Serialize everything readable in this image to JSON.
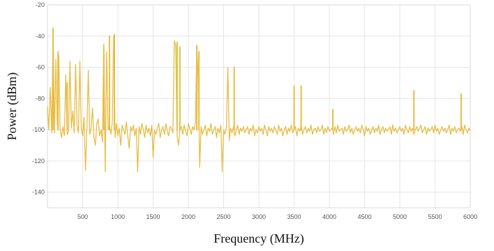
{
  "chart_data": {
    "type": "line",
    "title": "",
    "xlabel": "Frequency (MHz)",
    "ylabel": "Power (dBm)",
    "xlim": [
      0,
      6000
    ],
    "ylim": [
      -150,
      -20
    ],
    "x_ticks": [
      500,
      1000,
      1500,
      2000,
      2500,
      3000,
      3500,
      4000,
      4500,
      5000,
      5500,
      6000
    ],
    "x_tick_labels": [
      "500",
      "1000",
      "1500",
      "2000",
      "2500",
      "3000",
      "3500",
      "4000",
      "4500",
      "5000",
      "5500",
      "6000"
    ],
    "y_ticks": [
      -20,
      -40,
      -60,
      -80,
      -100,
      -120,
      -140
    ],
    "y_tick_labels": [
      "-20",
      "-40",
      "-60",
      "-80",
      "-100",
      "-120",
      "-140"
    ],
    "grid": true,
    "legend": false,
    "series_color": "#e8bd45",
    "series": [
      {
        "step_mhz": 20,
        "values": [
          -85,
          -100,
          -73,
          -102,
          -38,
          -102,
          -55,
          -97,
          -52,
          -100,
          -105,
          -98,
          -104,
          -65,
          -103,
          -101,
          -56,
          -99,
          -88,
          -102,
          -58,
          -97,
          -102,
          -56,
          -99,
          -104,
          -92,
          -126,
          -98,
          -62,
          -103,
          -99,
          -86,
          -105,
          -110,
          -96,
          -93,
          -104,
          -100,
          -108,
          -45,
          -127,
          -50,
          -100,
          -97,
          -103,
          -96,
          -40,
          -105,
          -96,
          -104,
          -99,
          -110,
          -97,
          -100,
          -103,
          -95,
          -104,
          -112,
          -98,
          -101,
          -97,
          -104,
          -99,
          -127,
          -98,
          -103,
          -96,
          -100,
          -105,
          -97,
          -102,
          -99,
          -104,
          -97,
          -118,
          -100,
          -103,
          -99,
          -96,
          -105,
          -100,
          -98,
          -103,
          -96,
          -101,
          -104,
          -98,
          -99,
          -102,
          -43,
          -46,
          -104,
          -110,
          -100,
          -98,
          -103,
          -97,
          -101,
          -104,
          -96,
          -99,
          -103,
          -98,
          -100,
          -95,
          -47,
          -66,
          -124,
          -98,
          -103,
          -100,
          -97,
          -104,
          -99,
          -101,
          -96,
          -103,
          -100,
          -98,
          -105,
          -99,
          -102,
          -97,
          -127,
          -100,
          -103,
          -98,
          -60,
          -107,
          -99,
          -102,
          -98,
          -104,
          -100,
          -97,
          -103,
          -99,
          -101,
          -98,
          -102,
          -100,
          -98,
          -103,
          -99,
          -101,
          -97,
          -104,
          -100,
          -102,
          -98,
          -101,
          -99,
          -103,
          -97,
          -100,
          -104,
          -98,
          -101,
          -99,
          -102,
          -98,
          -100,
          -103,
          -97,
          -101,
          -99,
          -104,
          -100,
          -98,
          -103,
          -99,
          -101,
          -97,
          -102,
          -100,
          -98,
          -104,
          -99,
          -101,
          -97,
          -103,
          -100,
          -98,
          -102,
          -99,
          -101,
          -97,
          -103,
          -100,
          -99,
          -102,
          -98,
          -101,
          -100,
          -97,
          -103,
          -99,
          -102,
          -98,
          -101,
          -100,
          -99,
          -103,
          -98,
          -102,
          -97,
          -101,
          -100,
          -99,
          -103,
          -98,
          -101,
          -100,
          -97,
          -102,
          -99,
          -103,
          -100,
          -98,
          -101,
          -99,
          -102,
          -97,
          -100,
          -104,
          -98,
          -101,
          -99,
          -103,
          -100,
          -98,
          -102,
          -99,
          -101,
          -97,
          -103,
          -100,
          -98,
          -102,
          -99,
          -101,
          -100,
          -98,
          -103,
          -97,
          -101,
          -99,
          -102,
          -100,
          -98,
          -101,
          -99,
          -103,
          -97,
          -100,
          -102,
          -98,
          -101,
          -99,
          -103,
          -100,
          -98,
          -101,
          -99,
          -97,
          -102,
          -100,
          -98,
          -103,
          -99,
          -101,
          -100,
          -98,
          -102,
          -97,
          -101,
          -99,
          -103,
          -100,
          -98,
          -101,
          -99,
          -102,
          -100,
          -97,
          -103,
          -99,
          -101,
          -98,
          -102,
          -100,
          -99,
          -101,
          -98,
          -103,
          -97,
          -100,
          -102,
          -99,
          -101
        ]
      }
    ],
    "peaks": [
      {
        "x": 80,
        "y": -35
      },
      {
        "x": 150,
        "y": -50
      },
      {
        "x": 280,
        "y": -70
      },
      {
        "x": 800,
        "y": -47
      },
      {
        "x": 880,
        "y": -40
      },
      {
        "x": 950,
        "y": -39
      },
      {
        "x": 1840,
        "y": -44
      },
      {
        "x": 1880,
        "y": -47
      },
      {
        "x": 2120,
        "y": -46
      },
      {
        "x": 2150,
        "y": -50
      },
      {
        "x": 2650,
        "y": -60
      },
      {
        "x": 3500,
        "y": -72
      },
      {
        "x": 3600,
        "y": -72
      },
      {
        "x": 4050,
        "y": -87
      },
      {
        "x": 5200,
        "y": -75
      },
      {
        "x": 5870,
        "y": -77
      }
    ]
  }
}
